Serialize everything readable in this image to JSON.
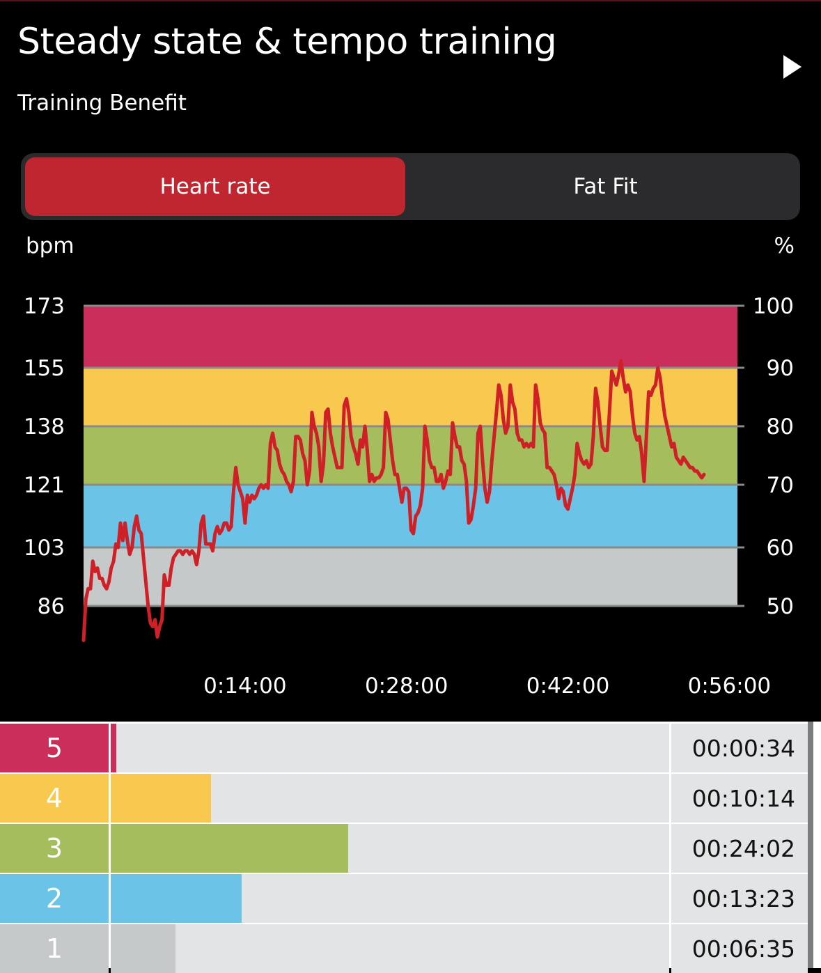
{
  "header": {
    "title": "Steady state & tempo training",
    "subtitle": "Training Benefit",
    "next_icon": "play-triangle-icon"
  },
  "tabs": [
    {
      "label": "Heart rate",
      "active": true
    },
    {
      "label": "Fat Fit",
      "active": false
    }
  ],
  "chart_data": {
    "type": "line",
    "ylabel_left": "bpm",
    "ylabel_right": "%",
    "left_ticks": [
      "173",
      "155",
      "138",
      "121",
      "103",
      "86"
    ],
    "right_ticks": [
      "100",
      "90",
      "80",
      "70",
      "60",
      "50"
    ],
    "x_ticks": [
      "0:14:00",
      "0:28:00",
      "0:42:00",
      "0:56:00"
    ],
    "x_tick_minutes": [
      14,
      28,
      42,
      56
    ],
    "xlim_minutes": [
      0,
      56.7
    ],
    "ylim_bpm": [
      86,
      173
    ],
    "zones": [
      {
        "zone": "5",
        "from": 155,
        "to": 173,
        "color": "#cc2e5b"
      },
      {
        "zone": "4",
        "from": 138,
        "to": 155,
        "color": "#f8c84f"
      },
      {
        "zone": "3",
        "from": 121,
        "to": 138,
        "color": "#a6bd5d"
      },
      {
        "zone": "2",
        "from": 103,
        "to": 121,
        "color": "#6cc3e8"
      },
      {
        "zone": "1",
        "from": 86,
        "to": 103,
        "color": "#c5c9c9"
      }
    ],
    "series": [
      {
        "color": "#cf2027",
        "points": [
          [
            0.0,
            76
          ],
          [
            0.2,
            88
          ],
          [
            0.4,
            91
          ],
          [
            0.6,
            91
          ],
          [
            0.8,
            99
          ],
          [
            1.0,
            96
          ],
          [
            1.2,
            97
          ],
          [
            1.4,
            94
          ],
          [
            1.6,
            94
          ],
          [
            1.8,
            92
          ],
          [
            2.0,
            91
          ],
          [
            2.2,
            93
          ],
          [
            2.4,
            97
          ],
          [
            2.6,
            99
          ],
          [
            2.8,
            104
          ],
          [
            3.0,
            103
          ],
          [
            3.2,
            110
          ],
          [
            3.4,
            105
          ],
          [
            3.6,
            110
          ],
          [
            3.8,
            105
          ],
          [
            4.0,
            101
          ],
          [
            4.2,
            103
          ],
          [
            4.4,
            109
          ],
          [
            4.6,
            112
          ],
          [
            4.8,
            108
          ],
          [
            5.0,
            107
          ],
          [
            5.2,
            100
          ],
          [
            5.4,
            93
          ],
          [
            5.6,
            86
          ],
          [
            5.8,
            81
          ],
          [
            6.0,
            80
          ],
          [
            6.2,
            82
          ],
          [
            6.4,
            77
          ],
          [
            6.6,
            80
          ],
          [
            6.8,
            82
          ],
          [
            7.0,
            95
          ],
          [
            7.2,
            92
          ],
          [
            7.4,
            92
          ],
          [
            7.6,
            97
          ],
          [
            7.8,
            100
          ],
          [
            8.0,
            101
          ],
          [
            8.2,
            102
          ],
          [
            8.4,
            102
          ],
          [
            8.6,
            101
          ],
          [
            8.8,
            102
          ],
          [
            9.0,
            102
          ],
          [
            9.2,
            101
          ],
          [
            9.4,
            102
          ],
          [
            9.6,
            101
          ],
          [
            9.8,
            98
          ],
          [
            10.0,
            102
          ],
          [
            10.2,
            110
          ],
          [
            10.4,
            112
          ],
          [
            10.6,
            104
          ],
          [
            10.8,
            104
          ],
          [
            11.0,
            104
          ],
          [
            11.2,
            102
          ],
          [
            11.4,
            107
          ],
          [
            11.6,
            109
          ],
          [
            11.8,
            107
          ],
          [
            12.0,
            108
          ],
          [
            12.2,
            110
          ],
          [
            12.4,
            110
          ],
          [
            12.6,
            108
          ],
          [
            12.8,
            109
          ],
          [
            13.0,
            119
          ],
          [
            13.2,
            126
          ],
          [
            13.4,
            121
          ],
          [
            13.6,
            119
          ],
          [
            13.8,
            117
          ],
          [
            14.0,
            110
          ],
          [
            14.2,
            118
          ],
          [
            14.4,
            116
          ],
          [
            14.6,
            118
          ],
          [
            14.8,
            117
          ],
          [
            15.0,
            118
          ],
          [
            15.2,
            120
          ],
          [
            15.4,
            121
          ],
          [
            15.6,
            120
          ],
          [
            15.8,
            121
          ],
          [
            16.0,
            120
          ],
          [
            16.2,
            133
          ],
          [
            16.4,
            136
          ],
          [
            16.6,
            132
          ],
          [
            16.8,
            131
          ],
          [
            17.0,
            127
          ],
          [
            17.2,
            125
          ],
          [
            17.4,
            124
          ],
          [
            17.6,
            122
          ],
          [
            17.8,
            121
          ],
          [
            18.0,
            119
          ],
          [
            18.2,
            122
          ],
          [
            18.4,
            135
          ],
          [
            18.6,
            135
          ],
          [
            18.8,
            134
          ],
          [
            19.0,
            130
          ],
          [
            19.2,
            128
          ],
          [
            19.4,
            121
          ],
          [
            19.6,
            125
          ],
          [
            19.8,
            142
          ],
          [
            20.0,
            138
          ],
          [
            20.2,
            136
          ],
          [
            20.4,
            132
          ],
          [
            20.6,
            122
          ],
          [
            20.8,
            127
          ],
          [
            21.0,
            142
          ],
          [
            21.2,
            143
          ],
          [
            21.4,
            136
          ],
          [
            21.6,
            132
          ],
          [
            21.8,
            129
          ],
          [
            22.0,
            126
          ],
          [
            22.2,
            126
          ],
          [
            22.4,
            126
          ],
          [
            22.6,
            144
          ],
          [
            22.8,
            146
          ],
          [
            23.0,
            142
          ],
          [
            23.2,
            135
          ],
          [
            23.4,
            132
          ],
          [
            23.6,
            130
          ],
          [
            23.8,
            127
          ],
          [
            24.0,
            134
          ],
          [
            24.2,
            132
          ],
          [
            24.4,
            138
          ],
          [
            24.6,
            131
          ],
          [
            24.8,
            122
          ],
          [
            25.0,
            124
          ],
          [
            25.2,
            122
          ],
          [
            25.4,
            123
          ],
          [
            25.6,
            123
          ],
          [
            25.8,
            124
          ],
          [
            26.0,
            126
          ],
          [
            26.2,
            142
          ],
          [
            26.4,
            140
          ],
          [
            26.6,
            134
          ],
          [
            26.8,
            128
          ],
          [
            27.0,
            124
          ],
          [
            27.2,
            124
          ],
          [
            27.4,
            120
          ],
          [
            27.6,
            116
          ],
          [
            27.8,
            120
          ],
          [
            28.0,
            120
          ],
          [
            28.2,
            119
          ],
          [
            28.4,
            108
          ],
          [
            28.6,
            107
          ],
          [
            28.8,
            112
          ],
          [
            29.0,
            113
          ],
          [
            29.2,
            115
          ],
          [
            29.4,
            120
          ],
          [
            29.6,
            138
          ],
          [
            29.8,
            134
          ],
          [
            30.0,
            128
          ],
          [
            30.2,
            126
          ],
          [
            30.4,
            126
          ],
          [
            30.6,
            122
          ],
          [
            30.8,
            122
          ],
          [
            31.0,
            124
          ],
          [
            31.2,
            120
          ],
          [
            31.4,
            122
          ],
          [
            31.6,
            125
          ],
          [
            31.8,
            124
          ],
          [
            32.0,
            139
          ],
          [
            32.2,
            135
          ],
          [
            32.4,
            132
          ],
          [
            32.6,
            132
          ],
          [
            32.8,
            128
          ],
          [
            33.0,
            127
          ],
          [
            33.2,
            122
          ],
          [
            33.4,
            110
          ],
          [
            33.6,
            111
          ],
          [
            33.8,
            115
          ],
          [
            34.0,
            120
          ],
          [
            34.2,
            136
          ],
          [
            34.4,
            138
          ],
          [
            34.6,
            128
          ],
          [
            34.8,
            120
          ],
          [
            35.0,
            116
          ],
          [
            35.2,
            119
          ],
          [
            35.4,
            128
          ],
          [
            35.6,
            135
          ],
          [
            35.8,
            142
          ],
          [
            36.0,
            150
          ],
          [
            36.2,
            147
          ],
          [
            36.4,
            140
          ],
          [
            36.6,
            136
          ],
          [
            36.8,
            138
          ],
          [
            37.0,
            150
          ],
          [
            37.2,
            145
          ],
          [
            37.4,
            143
          ],
          [
            37.6,
            136
          ],
          [
            37.8,
            134
          ],
          [
            38.0,
            134
          ],
          [
            38.2,
            132
          ],
          [
            38.4,
            133
          ],
          [
            38.6,
            132
          ],
          [
            38.8,
            133
          ],
          [
            39.0,
            132
          ],
          [
            39.2,
            150
          ],
          [
            39.4,
            146
          ],
          [
            39.6,
            139
          ],
          [
            39.8,
            137
          ],
          [
            40.0,
            136
          ],
          [
            40.2,
            126
          ],
          [
            40.4,
            126
          ],
          [
            40.6,
            125
          ],
          [
            40.8,
            124
          ],
          [
            41.0,
            121
          ],
          [
            41.2,
            117
          ],
          [
            41.4,
            120
          ],
          [
            41.6,
            119
          ],
          [
            41.8,
            115
          ],
          [
            42.0,
            114
          ],
          [
            42.2,
            117
          ],
          [
            42.4,
            120
          ],
          [
            42.6,
            124
          ],
          [
            42.8,
            133
          ],
          [
            43.0,
            130
          ],
          [
            43.2,
            128
          ],
          [
            43.4,
            127
          ],
          [
            43.6,
            128
          ],
          [
            43.8,
            126
          ],
          [
            44.0,
            127
          ],
          [
            44.2,
            135
          ],
          [
            44.4,
            149
          ],
          [
            44.6,
            145
          ],
          [
            44.8,
            138
          ],
          [
            45.0,
            132
          ],
          [
            45.2,
            131
          ],
          [
            45.4,
            131
          ],
          [
            45.6,
            142
          ],
          [
            45.8,
            154
          ],
          [
            46.0,
            152
          ],
          [
            46.2,
            150
          ],
          [
            46.4,
            153
          ],
          [
            46.6,
            157
          ],
          [
            46.8,
            152
          ],
          [
            47.0,
            148
          ],
          [
            47.2,
            150
          ],
          [
            47.4,
            148
          ],
          [
            47.6,
            141
          ],
          [
            47.8,
            136
          ],
          [
            48.0,
            134
          ],
          [
            48.2,
            135
          ],
          [
            48.4,
            130
          ],
          [
            48.6,
            122
          ],
          [
            48.8,
            135
          ],
          [
            49.0,
            148
          ],
          [
            49.2,
            147
          ],
          [
            49.4,
            149
          ],
          [
            49.6,
            150
          ],
          [
            49.8,
            155
          ],
          [
            50.0,
            152
          ],
          [
            50.2,
            146
          ],
          [
            50.4,
            141
          ],
          [
            50.6,
            138
          ],
          [
            50.8,
            135
          ],
          [
            51.0,
            132
          ],
          [
            51.2,
            133
          ],
          [
            51.4,
            129
          ],
          [
            51.6,
            128
          ],
          [
            51.8,
            127
          ],
          [
            52.0,
            129
          ],
          [
            52.2,
            128
          ],
          [
            52.4,
            127
          ],
          [
            52.6,
            126
          ],
          [
            52.8,
            126
          ],
          [
            53.0,
            125
          ],
          [
            53.2,
            125
          ],
          [
            53.4,
            124
          ],
          [
            53.6,
            123
          ],
          [
            53.8,
            124
          ]
        ]
      }
    ]
  },
  "zone_table": [
    {
      "zone": "5",
      "time": "00:00:34",
      "fraction": 0.01,
      "color": "#cc2e5b"
    },
    {
      "zone": "4",
      "time": "00:10:14",
      "fraction": 0.18,
      "color": "#f8c84f"
    },
    {
      "zone": "3",
      "time": "00:24:02",
      "fraction": 0.425,
      "color": "#a6bd5d"
    },
    {
      "zone": "2",
      "time": "00:13:23",
      "fraction": 0.235,
      "color": "#6cc3e8"
    },
    {
      "zone": "1",
      "time": "00:06:35",
      "fraction": 0.116,
      "color": "#c5c9c9"
    }
  ]
}
